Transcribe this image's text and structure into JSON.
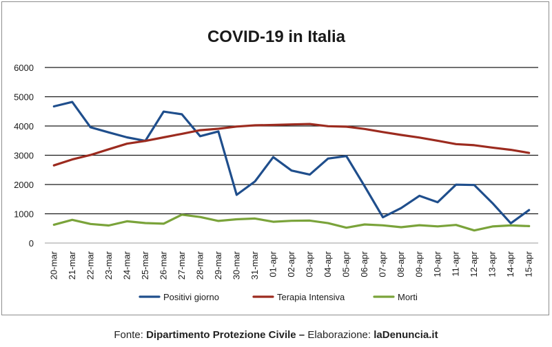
{
  "chart_data": {
    "type": "line",
    "title": "COVID-19 in Italia",
    "categories": [
      "20-mar",
      "21-mar",
      "22-mar",
      "23-mar",
      "24-mar",
      "25-mar",
      "26-mar",
      "27-mar",
      "28-mar",
      "29-mar",
      "30-mar",
      "31-mar",
      "01-apr",
      "02-apr",
      "03-apr",
      "04-apr",
      "05-apr",
      "06-apr",
      "07-apr",
      "08-apr",
      "09-apr",
      "10-apr",
      "11-apr",
      "12-apr",
      "13-apr",
      "14-apr",
      "15-apr"
    ],
    "ylim": [
      0,
      6000
    ],
    "yticks": [
      0,
      1000,
      2000,
      3000,
      4000,
      5000,
      6000
    ],
    "grid": true,
    "legend_position": "bottom",
    "series": [
      {
        "name": "Positivi giorno",
        "color": "#1f4e8c",
        "values": [
          4670,
          4821,
          3957,
          3780,
          3612,
          3491,
          4492,
          4401,
          3651,
          3815,
          1648,
          2107,
          2937,
          2477,
          2339,
          2886,
          2972,
          1941,
          880,
          1195,
          1615,
          1396,
          1996,
          1984,
          1363,
          675,
          1127
        ]
      },
      {
        "name": "Terapia Intensiva",
        "color": "#9c2b1f",
        "values": [
          2655,
          2857,
          3009,
          3204,
          3396,
          3489,
          3612,
          3732,
          3856,
          3906,
          3981,
          4023,
          4035,
          4053,
          4068,
          3994,
          3977,
          3898,
          3792,
          3693,
          3605,
          3497,
          3381,
          3343,
          3260,
          3186,
          3079
        ]
      },
      {
        "name": "Morti",
        "color": "#7aa33a",
        "values": [
          627,
          793,
          651,
          601,
          743,
          683,
          662,
          969,
          889,
          756,
          812,
          837,
          727,
          760,
          766,
          681,
          525,
          636,
          604,
          542,
          610,
          570,
          619,
          431,
          566,
          602,
          578
        ]
      }
    ]
  },
  "footer": {
    "prefix": "Fonte: ",
    "source": "Dipartimento Protezione Civile",
    "separator": " – ",
    "elab_label": "Elaborazione: ",
    "elab_value": "laDenuncia.it"
  }
}
